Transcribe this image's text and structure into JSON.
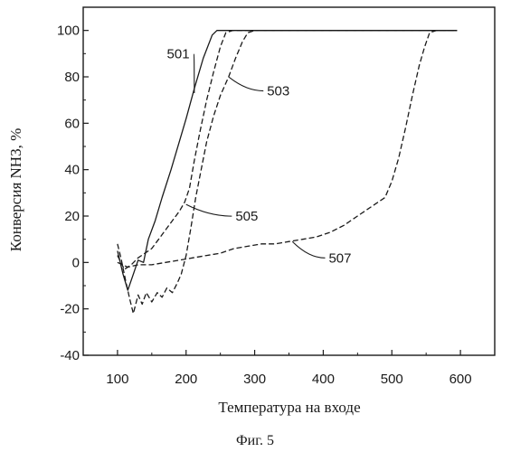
{
  "chart_data": {
    "type": "line",
    "title": "",
    "xlabel": "Температура на входе",
    "ylabel": "Конверсия NH3, %",
    "caption": "Фиг. 5",
    "xlim": [
      50,
      650
    ],
    "ylim": [
      -40,
      110
    ],
    "x_ticks": [
      100,
      200,
      300,
      400,
      500,
      600
    ],
    "y_ticks": [
      -40,
      -20,
      0,
      20,
      40,
      60,
      80,
      100
    ],
    "grid": false,
    "series": [
      {
        "name": "501",
        "style": "solid",
        "points": [
          [
            100,
            5
          ],
          [
            108,
            -5
          ],
          [
            115,
            -12
          ],
          [
            122,
            -6
          ],
          [
            130,
            1
          ],
          [
            138,
            0
          ],
          [
            145,
            10
          ],
          [
            155,
            18
          ],
          [
            165,
            28
          ],
          [
            178,
            40
          ],
          [
            190,
            52
          ],
          [
            200,
            62
          ],
          [
            212,
            75
          ],
          [
            225,
            88
          ],
          [
            238,
            98
          ],
          [
            245,
            100
          ],
          [
            270,
            100
          ],
          [
            300,
            100
          ],
          [
            400,
            100
          ],
          [
            500,
            100
          ],
          [
            595,
            100
          ]
        ]
      },
      {
        "name": "503",
        "style": "dashed",
        "points": [
          [
            100,
            8
          ],
          [
            105,
            2
          ],
          [
            112,
            -8
          ],
          [
            118,
            -16
          ],
          [
            123,
            -22
          ],
          [
            130,
            -14
          ],
          [
            136,
            -18
          ],
          [
            142,
            -13
          ],
          [
            150,
            -17
          ],
          [
            158,
            -13
          ],
          [
            165,
            -15
          ],
          [
            172,
            -11
          ],
          [
            180,
            -13
          ],
          [
            187,
            -9
          ],
          [
            193,
            -5
          ],
          [
            200,
            3
          ],
          [
            207,
            15
          ],
          [
            214,
            28
          ],
          [
            222,
            40
          ],
          [
            230,
            52
          ],
          [
            240,
            63
          ],
          [
            250,
            72
          ],
          [
            262,
            80
          ],
          [
            272,
            88
          ],
          [
            282,
            95
          ],
          [
            290,
            99
          ],
          [
            300,
            100
          ],
          [
            400,
            100
          ],
          [
            500,
            100
          ],
          [
            595,
            100
          ]
        ]
      },
      {
        "name": "505",
        "style": "dashed",
        "points": [
          [
            100,
            3
          ],
          [
            110,
            -3
          ],
          [
            120,
            -1
          ],
          [
            130,
            2
          ],
          [
            140,
            4
          ],
          [
            150,
            6
          ],
          [
            160,
            10
          ],
          [
            170,
            14
          ],
          [
            180,
            18
          ],
          [
            190,
            22
          ],
          [
            198,
            26
          ],
          [
            205,
            32
          ],
          [
            212,
            44
          ],
          [
            220,
            56
          ],
          [
            230,
            70
          ],
          [
            240,
            82
          ],
          [
            250,
            93
          ],
          [
            258,
            99
          ],
          [
            268,
            100
          ],
          [
            300,
            100
          ],
          [
            400,
            100
          ],
          [
            500,
            100
          ],
          [
            595,
            100
          ]
        ]
      },
      {
        "name": "507",
        "style": "dashed",
        "points": [
          [
            100,
            0
          ],
          [
            115,
            -2
          ],
          [
            130,
            -1
          ],
          [
            150,
            -1
          ],
          [
            170,
            0
          ],
          [
            190,
            1
          ],
          [
            210,
            2
          ],
          [
            230,
            3
          ],
          [
            250,
            4
          ],
          [
            270,
            6
          ],
          [
            290,
            7
          ],
          [
            310,
            8
          ],
          [
            330,
            8
          ],
          [
            350,
            9
          ],
          [
            370,
            10
          ],
          [
            390,
            11
          ],
          [
            410,
            13
          ],
          [
            430,
            16
          ],
          [
            450,
            20
          ],
          [
            470,
            24
          ],
          [
            490,
            28
          ],
          [
            500,
            35
          ],
          [
            510,
            45
          ],
          [
            520,
            58
          ],
          [
            530,
            72
          ],
          [
            540,
            85
          ],
          [
            548,
            93
          ],
          [
            555,
            99
          ],
          [
            565,
            100
          ],
          [
            595,
            100
          ]
        ]
      }
    ]
  },
  "callouts": [
    {
      "text": "501",
      "series": "501",
      "at": [
        172,
        88
      ],
      "target": [
        212,
        73
      ]
    },
    {
      "text": "503",
      "series": "503",
      "at": [
        318,
        72
      ],
      "target": [
        262,
        80
      ]
    },
    {
      "text": "505",
      "series": "505",
      "at": [
        272,
        18
      ],
      "target": [
        200,
        25
      ]
    },
    {
      "text": "507",
      "series": "507",
      "at": [
        408,
        0
      ],
      "target": [
        355,
        9
      ]
    }
  ]
}
